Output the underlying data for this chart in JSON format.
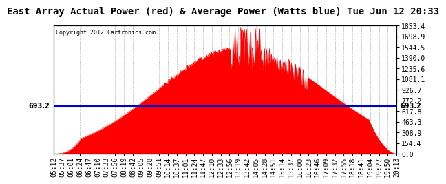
{
  "title": "East Array Actual Power (red) & Average Power (Watts blue) Tue Jun 12 20:33",
  "copyright": "Copyright 2012 Cartronics.com",
  "average_value": 693.2,
  "y_max": 1853.4,
  "y_min": 0.0,
  "y_ticks": [
    0.0,
    154.4,
    308.9,
    463.3,
    617.8,
    772.2,
    926.7,
    1081.1,
    1235.6,
    1390.0,
    1544.5,
    1698.9,
    1853.4
  ],
  "background_color": "#ffffff",
  "plot_bg_color": "#ffffff",
  "red_fill_color": "#ff0000",
  "blue_line_color": "#0000cc",
  "grid_color": "#aaaaaa",
  "title_fontsize": 10,
  "tick_fontsize": 7,
  "avg_label_fontsize": 7,
  "x_labels": [
    "05:12",
    "05:37",
    "06:01",
    "06:24",
    "06:47",
    "07:10",
    "07:33",
    "07:56",
    "08:19",
    "08:42",
    "09:05",
    "09:28",
    "09:51",
    "10:14",
    "10:37",
    "11:01",
    "11:24",
    "11:47",
    "12:10",
    "12:33",
    "12:56",
    "13:19",
    "13:42",
    "14:05",
    "14:28",
    "14:51",
    "15:14",
    "15:37",
    "16:00",
    "16:23",
    "16:46",
    "17:09",
    "17:32",
    "17:55",
    "18:18",
    "18:41",
    "19:04",
    "19:27",
    "19:50",
    "20:13"
  ]
}
